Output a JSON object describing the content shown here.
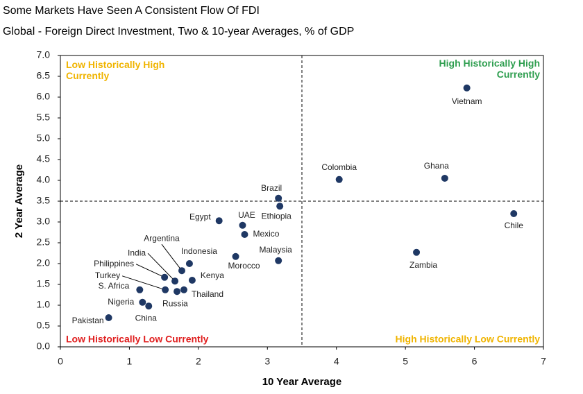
{
  "chart_data": {
    "type": "scatter",
    "title": "Some Markets Have Seen A Consistent Flow Of FDI",
    "subtitle": "Global - Foreign Direct Investment, Two & 10-year Averages, % of GDP",
    "x_label": "10 Year Average",
    "y_label": "2 Year Average",
    "quadrant_labels": {
      "top_left": "Low Historically High Currently",
      "top_right": "High Historically High Currently",
      "bottom_left": "Low Historically Low Currently",
      "bottom_right": "High Historically Low Currently"
    },
    "xlim": [
      0,
      7
    ],
    "ylim": [
      0,
      7
    ],
    "xticks": [
      0,
      1,
      2,
      3,
      4,
      5,
      6,
      7
    ],
    "yticks": [
      {
        "value": 0,
        "label": "0.0"
      },
      {
        "value": 0.5,
        "label": "0.5"
      },
      {
        "value": 1,
        "label": "1.0"
      },
      {
        "value": 1.5,
        "label": "1.5"
      },
      {
        "value": 2,
        "label": "2.0"
      },
      {
        "value": 2.5,
        "label": "2.5"
      },
      {
        "value": 3,
        "label": "3.0"
      },
      {
        "value": 3.5,
        "label": "3.5"
      },
      {
        "value": 4,
        "label": "4.0"
      },
      {
        "value": 4.5,
        "label": "4.5"
      },
      {
        "value": 5,
        "label": "5.0"
      },
      {
        "value": 5.5,
        "label": "5.5"
      },
      {
        "value": 6,
        "label": "6.0"
      },
      {
        "value": 6.5,
        "label": "6.5"
      },
      {
        "value": 7,
        "label": "7.0"
      }
    ],
    "reference_x": 3.5,
    "reference_y": 3.5,
    "color": "#1f3864",
    "labels": [
      "Vietnam",
      "Ghana",
      "Colombia",
      "Chile",
      "Zambia",
      "Brazil",
      "Ethiopia",
      "UAE",
      "Mexico",
      "Egypt",
      "Malaysia",
      "Morocco",
      "Indonesia",
      "Argentina",
      "India",
      "Philippines",
      "Kenya",
      "Turkey",
      "Thailand",
      "Russia",
      "S. Africa",
      "Nigeria",
      "China",
      "Pakistan"
    ],
    "x": [
      5.89,
      5.57,
      4.04,
      6.57,
      5.16,
      3.16,
      3.18,
      2.64,
      2.67,
      2.3,
      3.16,
      2.54,
      1.87,
      1.76,
      1.66,
      1.51,
      1.91,
      1.52,
      1.79,
      1.69,
      1.15,
      1.19,
      1.28,
      0.7
    ],
    "y": [
      6.22,
      4.05,
      4.02,
      3.2,
      2.27,
      3.57,
      3.38,
      2.92,
      2.7,
      3.03,
      2.07,
      2.17,
      2.0,
      1.83,
      1.58,
      1.67,
      1.6,
      1.37,
      1.37,
      1.33,
      1.37,
      1.07,
      0.98,
      0.7
    ]
  }
}
